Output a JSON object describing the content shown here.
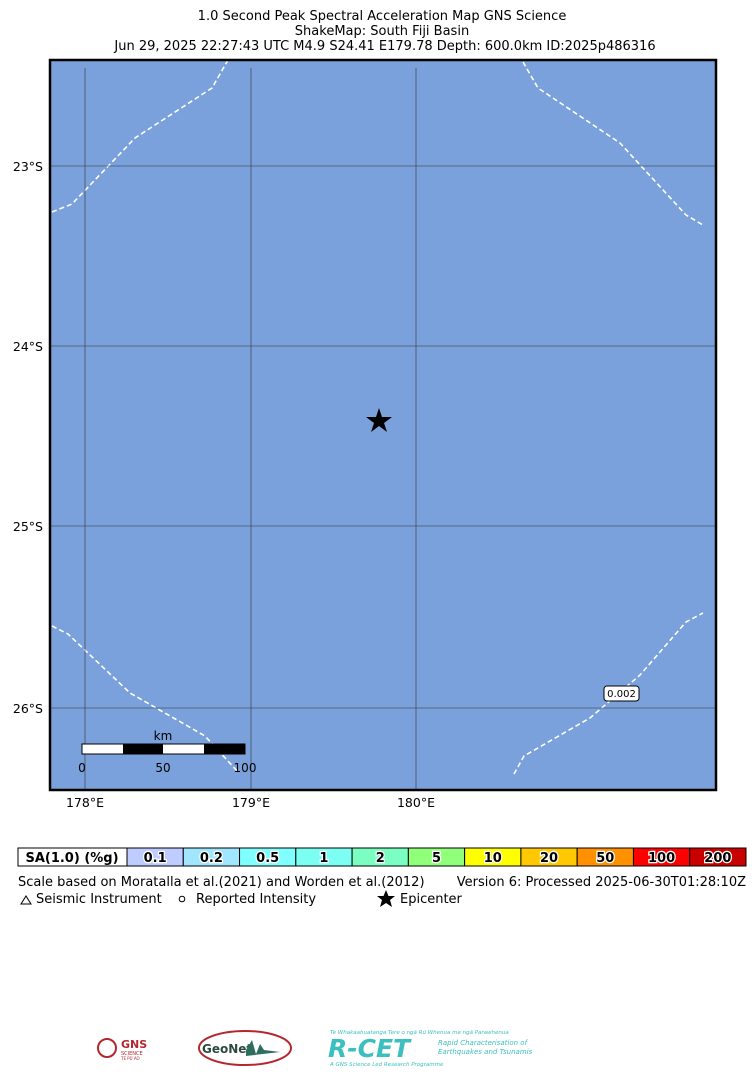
{
  "header": {
    "title": "1.0 Second Peak Spectral Acceleration Map GNS Science",
    "subtitle": "ShakeMap: South Fiji Basin",
    "event": "Jun 29, 2025 22:27:43 UTC M4.9 S24.41 E179.78 Depth: 600.0km ID:2025p486316"
  },
  "map": {
    "lat_labels": [
      "23°S",
      "24°S",
      "25°S",
      "26°S"
    ],
    "lon_labels": [
      "178°E",
      "179°E",
      "180°E"
    ],
    "contour_label": "0.002",
    "scale_bar": {
      "unit": "km",
      "ticks": [
        "0",
        "50",
        "100"
      ]
    }
  },
  "legend": {
    "title": "SA(1.0) (%g)",
    "bins": [
      {
        "label": "0.1",
        "color": "#bfccff"
      },
      {
        "label": "0.2",
        "color": "#a0e6ff"
      },
      {
        "label": "0.5",
        "color": "#80ffff"
      },
      {
        "label": "1",
        "color": "#7afff2"
      },
      {
        "label": "2",
        "color": "#7affc0"
      },
      {
        "label": "5",
        "color": "#90ff7a"
      },
      {
        "label": "10",
        "color": "#ffff00"
      },
      {
        "label": "20",
        "color": "#ffc800"
      },
      {
        "label": "50",
        "color": "#ff9100"
      },
      {
        "label": "100",
        "color": "#ff0000"
      },
      {
        "label": "200",
        "color": "#c80000"
      }
    ]
  },
  "footer": {
    "scale_note": "Scale based on Moratalla et al.(2021) and Worden et al.(2012)",
    "version": "Version 6: Processed 2025-06-30T01:28:10Z",
    "symbols": [
      "Seismic Instrument",
      "Reported Intensity",
      "Epicenter"
    ]
  },
  "logos": {
    "gns": {
      "name": "GNS",
      "sub": "SCIENCE",
      "maori": "TE PŪ AO"
    },
    "geonet": "GeoNet",
    "rcet": {
      "name": "R-CET",
      "maori": "Te Whakaahuatanga Tere o ngā Rū Whenua me ngā Parawhenua",
      "line1": "Rapid Characterisation of",
      "line2": "Earthquakes and Tsunamis",
      "tag": "A GNS Science Led Research Programme"
    }
  }
}
